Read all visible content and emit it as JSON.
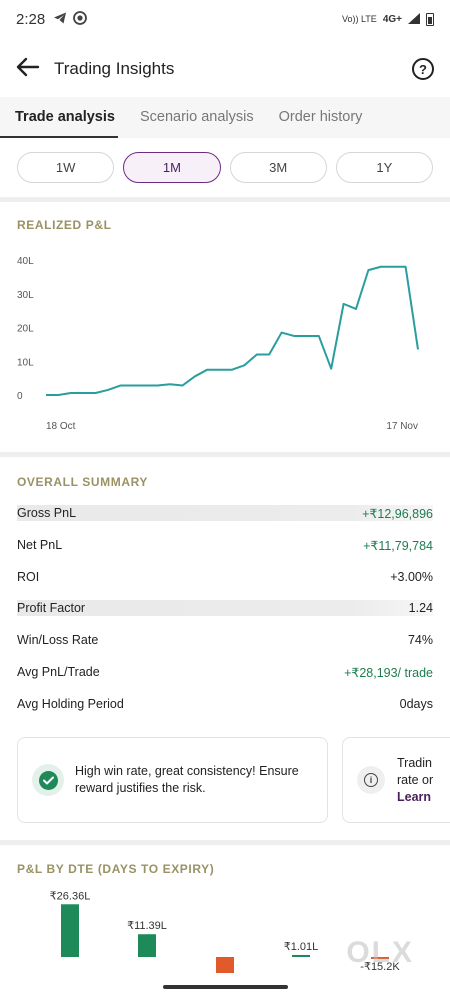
{
  "status_bar": {
    "time": "2:28",
    "network_top": "Vo)) LTE",
    "network": "4G+",
    "icons": [
      "telegram-icon",
      "whatsapp-icon",
      "battery-icon"
    ]
  },
  "header": {
    "title": "Trading Insights",
    "back_icon": "arrow-left-icon",
    "help_icon": "question-circle-icon"
  },
  "tabs": [
    {
      "label": "Trade analysis",
      "active": true
    },
    {
      "label": "Scenario analysis",
      "active": false
    },
    {
      "label": "Order history",
      "active": false
    }
  ],
  "periods": [
    {
      "label": "1W",
      "active": false
    },
    {
      "label": "1M",
      "active": true
    },
    {
      "label": "3M",
      "active": false
    },
    {
      "label": "1Y",
      "active": false
    }
  ],
  "realized_pl": {
    "section_title": "REALIZED P&L",
    "chart_data": {
      "type": "line",
      "title": "",
      "y_ticks": [
        "40L",
        "30L",
        "20L",
        "10L",
        "0"
      ],
      "ylim": [
        -1,
        42
      ],
      "x_labels": [
        "18 Oct",
        "17 Nov"
      ],
      "grid": false,
      "color": "#2a9d9e",
      "values": [
        0,
        0,
        0.6,
        0.6,
        0.6,
        1.5,
        2.8,
        2.8,
        2.8,
        2.8,
        3.2,
        2.8,
        5.5,
        7.5,
        7.5,
        7.5,
        8.8,
        12,
        12,
        18.5,
        17.5,
        17.5,
        17.5,
        7.8,
        27,
        25.5,
        37,
        38,
        38,
        38,
        13.5
      ]
    }
  },
  "overall_summary": {
    "section_title": "OVERALL SUMMARY",
    "rows": [
      {
        "label": "Gross PnL",
        "value": "+₹12,96,896",
        "positive": true,
        "shaded": true
      },
      {
        "label": "Net PnL",
        "value": "+₹11,79,784",
        "positive": true,
        "shaded": false
      },
      {
        "label": "ROI",
        "value": "+3.00%",
        "positive": false,
        "shaded": false
      },
      {
        "label": "Profit Factor",
        "value": "1.24",
        "positive": false,
        "shaded": true
      },
      {
        "label": "Win/Loss Rate",
        "value": "74%",
        "positive": false,
        "shaded": false
      },
      {
        "label": "Avg PnL/Trade",
        "value": "+₹28,193/ trade",
        "positive": true,
        "shaded": false
      },
      {
        "label": "Avg Holding Period",
        "value": "0days",
        "positive": false,
        "shaded": false
      }
    ]
  },
  "insights": [
    {
      "icon": "check-circle-icon",
      "text": "High win rate, great consistency! Ensure reward justifies the risk."
    },
    {
      "icon": "info-circle-icon",
      "line1": "Tradin",
      "line2": "rate or",
      "link": "Learn"
    }
  ],
  "dte": {
    "section_title": "P&L BY DTE (DAYS TO EXPIRY)",
    "chart_data": {
      "type": "bar",
      "title": "",
      "labels": [
        "₹26.36L",
        "₹11.39L",
        "",
        "₹1.01L",
        "-₹15.2K"
      ],
      "values": [
        26.36,
        11.39,
        -8,
        1.01,
        -0.152
      ],
      "colors": {
        "positive": "#1e8a5a",
        "negative": "#e05a2b"
      }
    }
  },
  "watermark": "OLX"
}
